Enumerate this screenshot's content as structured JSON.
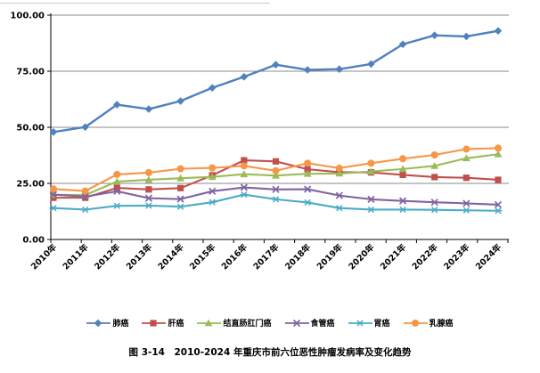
{
  "caption": "图 3-14　2010-2024 年重庆市前六位恶性肿瘤发病率及变化趋势",
  "chart_data": {
    "type": "line",
    "title": "",
    "xlabel": "",
    "ylabel": "",
    "ylim": [
      0,
      100
    ],
    "yticks": [
      0,
      25,
      50,
      75,
      100
    ],
    "ytick_labels": [
      "0.00",
      "25.00",
      "50.00",
      "75.00",
      "100.00"
    ],
    "grid": "horizontal",
    "gridline_color": "#888888",
    "axis_color": "#000000",
    "legend_position": "bottom",
    "categories": [
      "2010年",
      "2011年",
      "2012年",
      "2013年",
      "2014年",
      "2015年",
      "2016年",
      "2017年",
      "2018年",
      "2019年",
      "2020年",
      "2021年",
      "2022年",
      "2023年",
      "2024年"
    ],
    "series": [
      {
        "name": "肺癌",
        "color": "#4F81BD",
        "marker": "diamond",
        "values": [
          47.9,
          50.1,
          60.1,
          58.1,
          61.7,
          67.6,
          72.5,
          77.9,
          75.6,
          75.9,
          78.2,
          87.0,
          91.0,
          90.5,
          93.0
        ]
      },
      {
        "name": "肝癌",
        "color": "#C0504D",
        "marker": "square",
        "values": [
          18.6,
          18.6,
          23.0,
          22.3,
          22.9,
          28.6,
          35.3,
          34.8,
          31.3,
          30.0,
          29.9,
          28.8,
          27.8,
          27.5,
          26.6
        ]
      },
      {
        "name": "结直肠肛门癌",
        "color": "#9BBB59",
        "marker": "triangle",
        "values": [
          19.9,
          19.8,
          25.8,
          26.6,
          27.3,
          27.9,
          29.1,
          28.5,
          29.3,
          29.4,
          30.3,
          31.4,
          32.8,
          36.2,
          38.0
        ]
      },
      {
        "name": "食管癌",
        "color": "#8064A2",
        "marker": "x",
        "values": [
          20.0,
          19.1,
          21.5,
          18.4,
          18.0,
          21.5,
          23.2,
          22.3,
          22.4,
          19.6,
          17.9,
          17.2,
          16.6,
          16.1,
          15.5
        ]
      },
      {
        "name": "胃癌",
        "color": "#4BACC6",
        "marker": "star",
        "values": [
          14.0,
          13.3,
          15.0,
          15.1,
          14.6,
          16.6,
          20.0,
          17.9,
          16.5,
          14.0,
          13.3,
          13.3,
          13.2,
          13.0,
          12.8
        ]
      },
      {
        "name": "乳腺癌",
        "color": "#F79646",
        "marker": "circle",
        "values": [
          22.5,
          21.6,
          29.0,
          29.8,
          31.5,
          31.9,
          32.8,
          30.6,
          34.0,
          31.8,
          34.0,
          36.0,
          37.7,
          40.3,
          40.7
        ]
      }
    ]
  }
}
